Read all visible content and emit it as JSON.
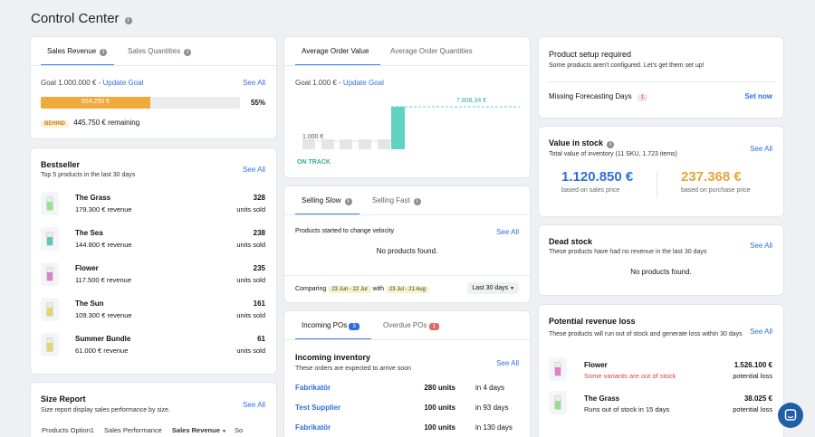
{
  "page_title": "Control Center",
  "sales": {
    "tabs": [
      "Sales Revenue",
      "Sales Quantities"
    ],
    "goal_label": "Goal 1.000.000 €",
    "separator": " - ",
    "update_goal": "Update Goal",
    "see_all": "See All",
    "progress_value": "554.250 €",
    "progress_fraction": 0.55,
    "progress_percent": "55%",
    "status_badge": "BEHIND",
    "remaining": "445.750 € remaining"
  },
  "aov": {
    "tabs": [
      "Average Order Value",
      "Average Order Quantities"
    ],
    "goal_label": "Goal 1.000 €",
    "separator": " - ",
    "update_goal": "Update Goal",
    "chart_value": "7.808,34 €",
    "chart_baseline": "1.000 €",
    "status": "ON TRACK"
  },
  "setup": {
    "title": "Product setup required",
    "subtitle": "Some products aren't configured. Let's get them set up!",
    "item_label": "Missing Forecasting Days",
    "item_count": "1",
    "action": "Set now"
  },
  "bestseller": {
    "title": "Bestseller",
    "subtitle": "Top 5 products in the last 30 days",
    "see_all": "See All",
    "items": [
      {
        "name": "The Grass",
        "revenue": "179.300 € revenue",
        "units": "328",
        "units_label": "units sold"
      },
      {
        "name": "The Sea",
        "revenue": "144.800 € revenue",
        "units": "238",
        "units_label": "units sold"
      },
      {
        "name": "Flower",
        "revenue": "117.500 € revenue",
        "units": "235",
        "units_label": "units sold"
      },
      {
        "name": "The Sun",
        "revenue": "109.300 € revenue",
        "units": "161",
        "units_label": "units sold"
      },
      {
        "name": "Summer Bundle",
        "revenue": "61.000 € revenue",
        "units": "61",
        "units_label": "units sold"
      }
    ]
  },
  "selling": {
    "tabs": [
      "Selling Slow",
      "Selling Fast"
    ],
    "subtitle": "Products started to change velocity",
    "see_all": "See All",
    "empty": "No products found.",
    "comparing": "Comparing",
    "range1": "23 Jun - 22 Jul",
    "with": "with",
    "range2": "23 Jul - 21 Aug",
    "period": "Last 30 days"
  },
  "value_in_stock": {
    "title": "Value in stock",
    "subtitle": "Total value of inventory (11 SKU, 1.723 items)",
    "see_all": "See All",
    "sales_value": "1.120.850 €",
    "sales_label": "based on sales price",
    "purchase_value": "237.368 €",
    "purchase_label": "based on purchase price"
  },
  "dead_stock": {
    "title": "Dead stock",
    "subtitle": "These products have had no revenue in the last 30 days",
    "see_all": "See All",
    "empty": "No products found."
  },
  "size_report": {
    "title": "Size Report",
    "subtitle": "Size report display sales performance by size.",
    "see_all": "See All",
    "columns": [
      "Products Option1",
      "Sales Performance",
      "Sales Revenue",
      "So"
    ]
  },
  "pos": {
    "tabs": [
      {
        "label": "Incoming POs",
        "count": "3"
      },
      {
        "label": "Overdue POs",
        "count": "1"
      }
    ],
    "title": "Incoming inventory",
    "subtitle": "These orders are expected to arrive soon",
    "see_all": "See All",
    "rows": [
      {
        "supplier": "Fabrikatör",
        "units": "280 units",
        "eta": "in 4 days"
      },
      {
        "supplier": "Test Supplier",
        "units": "100 units",
        "eta": "in 93 days"
      },
      {
        "supplier": "Fabrikatör",
        "units": "100 units",
        "eta": "in 130 days"
      }
    ]
  },
  "revenue_loss": {
    "title": "Potential revenue loss",
    "subtitle": "These products will run out of stock and generate loss within 30 days",
    "see_all": "See All",
    "items": [
      {
        "name": "Flower",
        "note": "Some variants are out of stock",
        "value": "1.526.100 €",
        "label": "potential loss"
      },
      {
        "name": "The Grass",
        "note": "Runs out of stock in 15 days",
        "value": "38.025 €",
        "label": "potential loss"
      }
    ]
  },
  "colors": {
    "accent": "#2f6ee0",
    "progress": "#f0a93b",
    "teal": "#5fd3bf",
    "orange": "#e8a33a",
    "danger": "#d9443a"
  }
}
